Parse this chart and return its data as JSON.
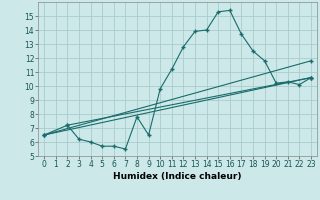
{
  "xlabel": "Humidex (Indice chaleur)",
  "bg_color": "#cce8e8",
  "grid_color": "#aacccc",
  "line_color": "#1a6b6b",
  "xlim": [
    -0.5,
    23.5
  ],
  "ylim": [
    5,
    16
  ],
  "xticks": [
    0,
    1,
    2,
    3,
    4,
    5,
    6,
    7,
    8,
    9,
    10,
    11,
    12,
    13,
    14,
    15,
    16,
    17,
    18,
    19,
    20,
    21,
    22,
    23
  ],
  "yticks": [
    5,
    6,
    7,
    8,
    9,
    10,
    11,
    12,
    13,
    14,
    15
  ],
  "line1_x": [
    0,
    2,
    3,
    4,
    5,
    6,
    7,
    8,
    9,
    10,
    11,
    12,
    13,
    14,
    15,
    16,
    17,
    18,
    19,
    20,
    21,
    22,
    23
  ],
  "line1_y": [
    6.5,
    7.2,
    6.2,
    6.0,
    5.7,
    5.7,
    5.5,
    7.8,
    6.5,
    9.8,
    11.2,
    12.8,
    13.9,
    14.0,
    15.3,
    15.4,
    13.7,
    12.5,
    11.8,
    10.2,
    10.3,
    10.1,
    10.6
  ],
  "line2_x": [
    0,
    23
  ],
  "line2_y": [
    6.5,
    10.6
  ],
  "line3_x": [
    2,
    23
  ],
  "line3_y": [
    7.2,
    10.6
  ],
  "line4_x": [
    0,
    23
  ],
  "line4_y": [
    6.5,
    11.8
  ]
}
